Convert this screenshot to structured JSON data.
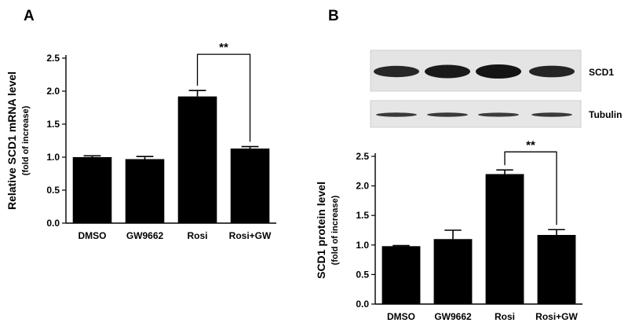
{
  "panels": {
    "a": {
      "letter": "A"
    },
    "b": {
      "letter": "B"
    }
  },
  "blot": {
    "bands": [
      {
        "label": "SCD1",
        "intensities": [
          0.8,
          0.95,
          1.0,
          0.82
        ]
      },
      {
        "label": "Tubulin",
        "intensities": [
          0.6,
          0.6,
          0.58,
          0.6
        ]
      }
    ]
  },
  "colors": {
    "bar": "#000000",
    "background": "#ffffff",
    "blot_background": "#e4e4e4",
    "band": "#141414"
  },
  "chart_data": [
    {
      "type": "bar",
      "panel": "A",
      "categories": [
        "DMSO",
        "GW9662",
        "Rosi",
        "Rosi+GW"
      ],
      "values": [
        1.0,
        0.97,
        1.92,
        1.13
      ],
      "errors": [
        0.02,
        0.04,
        0.09,
        0.03
      ],
      "title": "",
      "ylabel": "Relative SCD1 mRNA level",
      "ylabel2": "(fold of increase)",
      "ylim": [
        0,
        2.5
      ],
      "yticks": [
        "0.0",
        "0.5",
        "1.0",
        "1.5",
        "2.0",
        "2.5"
      ],
      "significance": {
        "from": "Rosi",
        "to": "Rosi+GW",
        "label": "**"
      }
    },
    {
      "type": "bar",
      "panel": "B",
      "categories": [
        "DMSO",
        "GW9662",
        "Rosi",
        "Rosi+GW"
      ],
      "values": [
        0.98,
        1.1,
        2.2,
        1.17
      ],
      "errors": [
        0.01,
        0.15,
        0.07,
        0.09
      ],
      "title": "",
      "ylabel": "SCD1 protein level",
      "ylabel2": "(fold of increase)",
      "ylim": [
        0,
        2.5
      ],
      "yticks": [
        "0.0",
        "0.5",
        "1.0",
        "1.5",
        "2.0",
        "2.5"
      ],
      "significance": {
        "from": "Rosi",
        "to": "Rosi+GW",
        "label": "**"
      }
    }
  ]
}
